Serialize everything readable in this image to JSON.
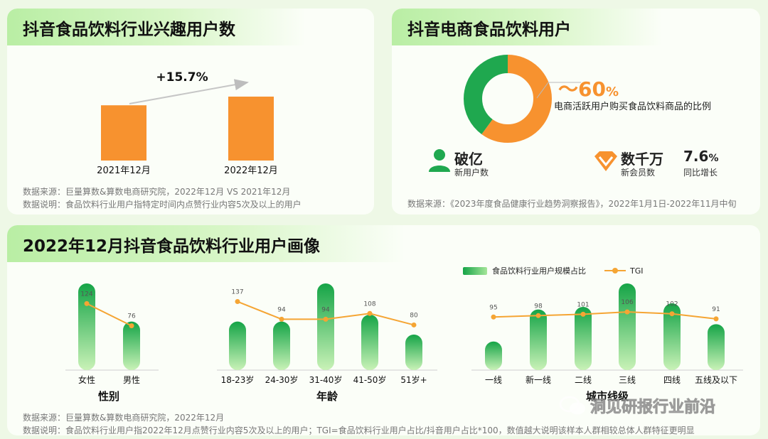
{
  "panel1": {
    "title": "抖音食品饮料行业兴趣用户数",
    "growth": "+15.7%",
    "source_line1": "数据来源：巨量算数&算数电商研究院，2022年12月 VS 2021年12月",
    "source_line2": "数据说明：食品饮料行业用户指特定时间内点赞行业内容5次及以上的用户"
  },
  "panel2": {
    "title": "抖音电商食品饮料用户",
    "pct_value": "～60",
    "pct_unit": "%",
    "pct_desc": "电商活跃用户购买食品饮料商品的比例",
    "stat1_value": "破亿",
    "stat1_label": "新用户数",
    "stat2_value": "数千万",
    "stat2_label": "新会员数",
    "stat3_value": "7.6",
    "stat3_unit": "%",
    "stat3_label": "同比增长",
    "source": "数据来源：《2023年度食品健康行业趋势洞察报告》，2022年1月1日-2022年11月中旬",
    "colors": {
      "green": "#1fa84f",
      "orange": "#f7922f"
    }
  },
  "panel3": {
    "title": "2022年12月抖音食品饮料行业用户画像",
    "legend_bar": "食品饮料行业用户规模占比",
    "legend_line": "TGI",
    "source_line1": "数据来源：巨量算数&算数电商研究院，2022年12月",
    "source_line2": "数据说明：食品饮料行业用户指2022年12月点赞行业内容5次及以上的用户；TGI=食品饮料行业用户占比/抖音用户占比*100，数值越大说明该样本人群相较总体人群特征更明显",
    "watermark": "洞见研报行业前沿"
  },
  "chart_data": [
    {
      "type": "bar",
      "categories": [
        "2021年12月",
        "2022年12月"
      ],
      "values": [
        100,
        115.7
      ],
      "annotation": "+15.7%",
      "colors": [
        "#f7922f"
      ]
    },
    {
      "type": "pie",
      "slices": [
        {
          "label": "购买食品饮料商品",
          "value": 60,
          "color": "#f7922f"
        },
        {
          "label": "",
          "value": 40,
          "color": "#1fa84f"
        }
      ]
    },
    {
      "type": "bar",
      "xlabel": "性别",
      "categories": [
        "女性",
        "男性"
      ],
      "bar_values": [
        1.0,
        0.56
      ],
      "series": [
        {
          "name": "TGI",
          "type": "line",
          "values": [
            124,
            76
          ]
        }
      ],
      "tgi_range": [
        60,
        140
      ]
    },
    {
      "type": "bar",
      "xlabel": "年龄",
      "categories": [
        "18-23岁",
        "24-30岁",
        "31-40岁",
        "41-50岁",
        "51岁+"
      ],
      "bar_values": [
        0.56,
        0.56,
        1.0,
        0.64,
        0.41
      ],
      "series": [
        {
          "name": "TGI",
          "type": "line",
          "values": [
            137,
            94,
            94,
            108,
            80
          ]
        }
      ],
      "tgi_range": [
        60,
        150
      ]
    },
    {
      "type": "bar",
      "xlabel": "城市线级",
      "categories": [
        "一线",
        "新一线",
        "二线",
        "三线",
        "四线",
        "五线及以下"
      ],
      "bar_values": [
        0.33,
        0.7,
        0.73,
        1.0,
        0.77,
        0.53
      ],
      "series": [
        {
          "name": "TGI",
          "type": "line",
          "values": [
            95,
            98,
            101,
            106,
            102,
            91
          ]
        }
      ],
      "tgi_range": [
        60,
        140
      ]
    }
  ]
}
